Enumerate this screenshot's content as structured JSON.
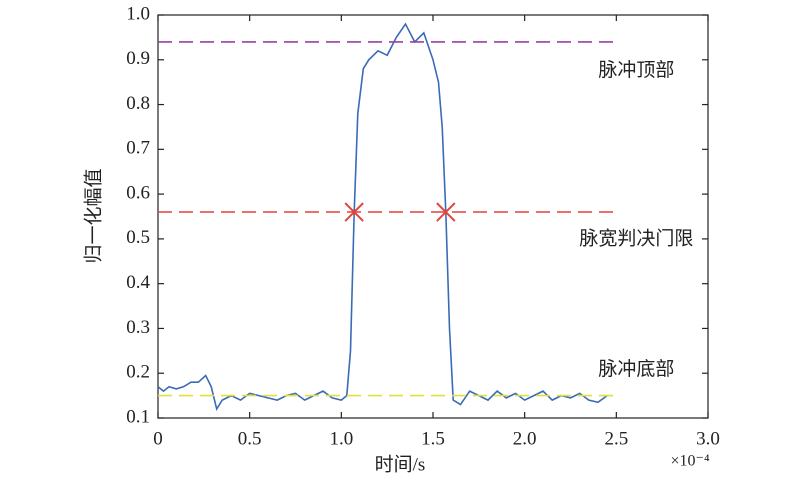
{
  "chart_data": {
    "type": "line",
    "xlabel": "时间/s",
    "ylabel": "归一化幅值",
    "x_multiplier": "×10⁻⁴",
    "xlim": [
      0,
      3
    ],
    "ylim": [
      0.1,
      1
    ],
    "xticks": [
      0,
      0.5,
      {
        "value": 1,
        "label": "1.0"
      },
      1.5,
      {
        "value": 2,
        "label": "2.0"
      },
      2.5,
      {
        "value": 3,
        "label": "3.0"
      }
    ],
    "yticks": [
      0.1,
      0.2,
      0.3,
      0.4,
      0.5,
      0.6,
      0.7,
      0.8,
      0.9,
      {
        "value": 1,
        "label": "1.0"
      }
    ],
    "series": [
      {
        "color": "#3a6bb5",
        "x": [
          0,
          0.03,
          0.06,
          0.1,
          0.14,
          0.18,
          0.22,
          0.26,
          0.29,
          0.32,
          0.35,
          0.4,
          0.45,
          0.5,
          0.55,
          0.6,
          0.65,
          0.7,
          0.75,
          0.8,
          0.85,
          0.9,
          0.95,
          1.0,
          1.03,
          1.05,
          1.07,
          1.09,
          1.12,
          1.15,
          1.2,
          1.25,
          1.3,
          1.35,
          1.4,
          1.45,
          1.5,
          1.53,
          1.55,
          1.57,
          1.59,
          1.61,
          1.65,
          1.7,
          1.75,
          1.8,
          1.85,
          1.9,
          1.95,
          2.0,
          2.05,
          2.1,
          2.15,
          2.2,
          2.25,
          2.3,
          2.35,
          2.4,
          2.45
        ],
        "values": [
          0.17,
          0.16,
          0.17,
          0.165,
          0.17,
          0.18,
          0.18,
          0.195,
          0.17,
          0.12,
          0.14,
          0.15,
          0.14,
          0.155,
          0.15,
          0.145,
          0.14,
          0.15,
          0.155,
          0.14,
          0.15,
          0.16,
          0.145,
          0.14,
          0.15,
          0.25,
          0.56,
          0.78,
          0.88,
          0.9,
          0.92,
          0.91,
          0.95,
          0.98,
          0.94,
          0.96,
          0.9,
          0.85,
          0.75,
          0.56,
          0.3,
          0.14,
          0.13,
          0.16,
          0.15,
          0.14,
          0.16,
          0.145,
          0.155,
          0.14,
          0.15,
          0.16,
          0.14,
          0.15,
          0.145,
          0.155,
          0.14,
          0.135,
          0.15
        ]
      },
      {
        "name": "脉冲顶部",
        "color": "#9b3fa8",
        "dashed": true,
        "x": [
          0,
          2.5
        ],
        "values": [
          0.94,
          0.94
        ]
      },
      {
        "name": "脉宽判决门限",
        "color": "#e8403a",
        "dashed": true,
        "x": [
          0,
          2.5
        ],
        "values": [
          0.56,
          0.56
        ]
      },
      {
        "name": "脉冲底部",
        "color": "#e0e040",
        "dashed": true,
        "x": [
          0,
          2.5
        ],
        "values": [
          0.15,
          0.15
        ]
      }
    ],
    "markers": {
      "x": [
        1.07,
        1.57
      ],
      "values": [
        0.56,
        0.56
      ],
      "color": "#e8403a"
    }
  }
}
